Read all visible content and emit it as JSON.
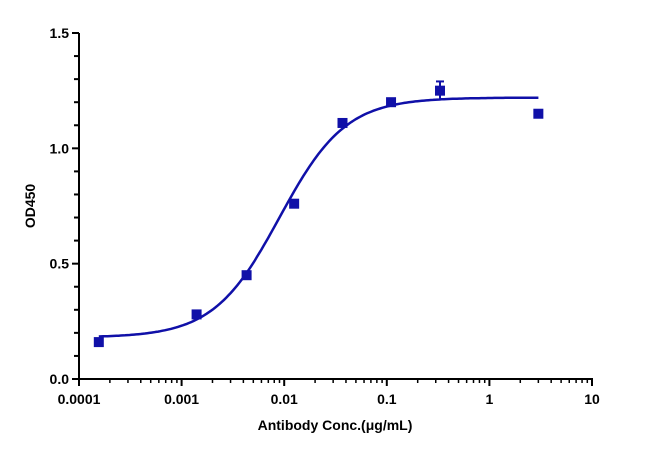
{
  "chart_data": {
    "type": "scatter",
    "title": "",
    "xlabel": "Antibody Conc.(μg/mL)",
    "ylabel": "OD450",
    "xscale": "log",
    "xlim": [
      0.0001,
      10
    ],
    "ylim": [
      0.0,
      1.5
    ],
    "x_ticks": [
      "0.0001",
      "0.001",
      "0.01",
      "0.1",
      "1",
      "10"
    ],
    "y_ticks": [
      "0.0",
      "0.5",
      "1.0",
      "1.5"
    ],
    "grid": false,
    "legend": null,
    "color": "#1010a8",
    "series": [
      {
        "name": "OD450",
        "marker": "square",
        "points": [
          {
            "x": 0.000156,
            "y": 0.16,
            "err": 0.01
          },
          {
            "x": 0.0014,
            "y": 0.28,
            "err": 0.01
          },
          {
            "x": 0.0043,
            "y": 0.45,
            "err": 0.01
          },
          {
            "x": 0.0125,
            "y": 0.76,
            "err": 0.01
          },
          {
            "x": 0.037,
            "y": 1.11,
            "err": 0.01
          },
          {
            "x": 0.11,
            "y": 1.2,
            "err": 0.01
          },
          {
            "x": 0.33,
            "y": 1.25,
            "err": 0.04
          },
          {
            "x": 3.0,
            "y": 1.15,
            "err": 0.01
          }
        ]
      }
    ],
    "fit": {
      "type": "4PL",
      "bottom": 0.18,
      "top": 1.22,
      "ec50": 0.009,
      "hill": 1.35,
      "x_range": [
        0.000156,
        3.0
      ]
    }
  }
}
